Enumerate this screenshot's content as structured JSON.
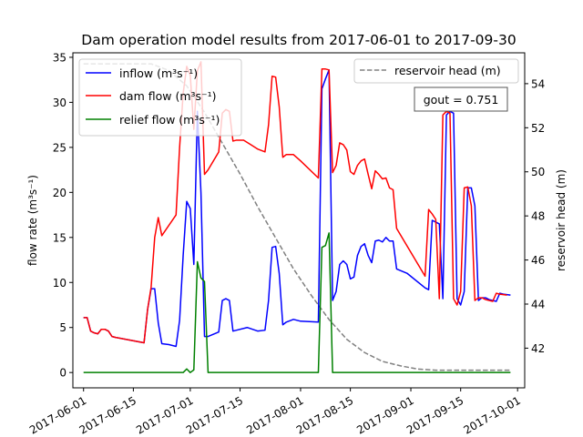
{
  "chart_data": {
    "type": "line",
    "title": "Dam operation model results from 2017-06-01 to 2017-09-30",
    "ylabel": "flow rate (m³s⁻¹)",
    "y2label": "reservoir head (m)",
    "xlim": [
      "2017-05-29",
      "2017-10-03"
    ],
    "ylim": [
      -1.7,
      35.5
    ],
    "y2lim": [
      40.2,
      55.4
    ],
    "x_ticks": [
      "2017-06-01",
      "2017-06-15",
      "2017-07-01",
      "2017-07-15",
      "2017-08-01",
      "2017-08-15",
      "2017-09-01",
      "2017-09-15",
      "2017-10-01"
    ],
    "y_ticks": [
      0,
      5,
      10,
      15,
      20,
      25,
      30,
      35
    ],
    "y2_ticks": [
      42,
      44,
      46,
      48,
      50,
      52,
      54
    ],
    "annotation": "gout = 0.751",
    "legend_left": [
      "inflow (m³s⁻¹)",
      "dam flow (m³s⁻¹)",
      "relief flow (m³s⁻¹)"
    ],
    "legend_right": [
      "reservoir head (m)"
    ],
    "series": [
      {
        "name": "inflow (m³s⁻¹)",
        "axis": "left",
        "color": "#0000ff",
        "points": [
          [
            "2017-06-01",
            6.1
          ],
          [
            "2017-06-02",
            6.1
          ],
          [
            "2017-06-03",
            4.6
          ],
          [
            "2017-06-04",
            4.4
          ],
          [
            "2017-06-05",
            4.3
          ],
          [
            "2017-06-06",
            4.8
          ],
          [
            "2017-06-07",
            4.8
          ],
          [
            "2017-06-08",
            4.6
          ],
          [
            "2017-06-09",
            4.0
          ],
          [
            "2017-06-10",
            3.9
          ],
          [
            "2017-06-18",
            3.3
          ],
          [
            "2017-06-19",
            7.0
          ],
          [
            "2017-06-20",
            9.3
          ],
          [
            "2017-06-21",
            9.3
          ],
          [
            "2017-06-22",
            5.5
          ],
          [
            "2017-06-23",
            3.2
          ],
          [
            "2017-06-25",
            3.1
          ],
          [
            "2017-06-27",
            2.9
          ],
          [
            "2017-06-28",
            5.8
          ],
          [
            "2017-06-29",
            13.0
          ],
          [
            "2017-06-30",
            19.0
          ],
          [
            "2017-07-01",
            18.2
          ],
          [
            "2017-07-02",
            12.0
          ],
          [
            "2017-07-03",
            29.0
          ],
          [
            "2017-07-04",
            20.0
          ],
          [
            "2017-07-05",
            4.0
          ],
          [
            "2017-07-06",
            4.0
          ],
          [
            "2017-07-09",
            4.5
          ],
          [
            "2017-07-10",
            8.0
          ],
          [
            "2017-07-11",
            8.2
          ],
          [
            "2017-07-12",
            8.0
          ],
          [
            "2017-07-13",
            4.6
          ],
          [
            "2017-07-14",
            4.7
          ],
          [
            "2017-07-17",
            5.0
          ],
          [
            "2017-07-20",
            4.6
          ],
          [
            "2017-07-22",
            4.7
          ],
          [
            "2017-07-23",
            8.0
          ],
          [
            "2017-07-24",
            13.9
          ],
          [
            "2017-07-25",
            14.0
          ],
          [
            "2017-07-26",
            11.0
          ],
          [
            "2017-07-27",
            5.3
          ],
          [
            "2017-07-28",
            5.6
          ],
          [
            "2017-07-30",
            5.9
          ],
          [
            "2017-08-01",
            5.7
          ],
          [
            "2017-08-06",
            5.6
          ],
          [
            "2017-08-07",
            31.5
          ],
          [
            "2017-08-08",
            32.6
          ],
          [
            "2017-08-09",
            33.6
          ],
          [
            "2017-08-10",
            8.0
          ],
          [
            "2017-08-11",
            9.0
          ],
          [
            "2017-08-12",
            12.0
          ],
          [
            "2017-08-13",
            12.4
          ],
          [
            "2017-08-14",
            12.0
          ],
          [
            "2017-08-15",
            10.4
          ],
          [
            "2017-08-16",
            10.6
          ],
          [
            "2017-08-17",
            13.0
          ],
          [
            "2017-08-18",
            14.0
          ],
          [
            "2017-08-19",
            14.3
          ],
          [
            "2017-08-20",
            13.0
          ],
          [
            "2017-08-21",
            12.2
          ],
          [
            "2017-08-22",
            14.6
          ],
          [
            "2017-08-23",
            14.7
          ],
          [
            "2017-08-24",
            14.5
          ],
          [
            "2017-08-25",
            15.0
          ],
          [
            "2017-08-26",
            14.6
          ],
          [
            "2017-08-27",
            14.6
          ],
          [
            "2017-08-28",
            11.5
          ],
          [
            "2017-08-31",
            11.0
          ],
          [
            "2017-09-05",
            9.4
          ],
          [
            "2017-09-06",
            9.2
          ],
          [
            "2017-09-07",
            16.9
          ],
          [
            "2017-09-08",
            16.7
          ],
          [
            "2017-09-09",
            16.5
          ],
          [
            "2017-09-10",
            8.2
          ],
          [
            "2017-09-11",
            28.6
          ],
          [
            "2017-09-12",
            29.0
          ],
          [
            "2017-09-13",
            28.8
          ],
          [
            "2017-09-14",
            8.2
          ],
          [
            "2017-09-15",
            7.5
          ],
          [
            "2017-09-16",
            9.0
          ],
          [
            "2017-09-17",
            20.5
          ],
          [
            "2017-09-18",
            20.5
          ],
          [
            "2017-09-19",
            18.5
          ],
          [
            "2017-09-20",
            8.0
          ],
          [
            "2017-09-21",
            8.3
          ],
          [
            "2017-09-22",
            8.3
          ],
          [
            "2017-09-23",
            8.1
          ],
          [
            "2017-09-25",
            7.9
          ],
          [
            "2017-09-26",
            8.8
          ],
          [
            "2017-09-27",
            8.7
          ],
          [
            "2017-09-29",
            8.6
          ]
        ]
      },
      {
        "name": "dam flow (m³s⁻¹)",
        "axis": "left",
        "color": "#ff0000",
        "points": [
          [
            "2017-06-01",
            6.1
          ],
          [
            "2017-06-02",
            6.1
          ],
          [
            "2017-06-03",
            4.6
          ],
          [
            "2017-06-04",
            4.4
          ],
          [
            "2017-06-05",
            4.3
          ],
          [
            "2017-06-06",
            4.8
          ],
          [
            "2017-06-07",
            4.8
          ],
          [
            "2017-06-08",
            4.6
          ],
          [
            "2017-06-09",
            4.0
          ],
          [
            "2017-06-10",
            3.9
          ],
          [
            "2017-06-18",
            3.3
          ],
          [
            "2017-06-19",
            7.0
          ],
          [
            "2017-06-20",
            9.5
          ],
          [
            "2017-06-21",
            15.0
          ],
          [
            "2017-06-22",
            17.2
          ],
          [
            "2017-06-23",
            15.2
          ],
          [
            "2017-06-27",
            17.5
          ],
          [
            "2017-06-28",
            25.0
          ],
          [
            "2017-06-29",
            31.0
          ],
          [
            "2017-06-30",
            34.0
          ],
          [
            "2017-07-01",
            33.0
          ],
          [
            "2017-07-02",
            27.0
          ],
          [
            "2017-07-03",
            33.5
          ],
          [
            "2017-07-04",
            34.5
          ],
          [
            "2017-07-05",
            22.0
          ],
          [
            "2017-07-06",
            22.5
          ],
          [
            "2017-07-09",
            24.5
          ],
          [
            "2017-07-10",
            28.8
          ],
          [
            "2017-07-11",
            29.2
          ],
          [
            "2017-07-12",
            29.0
          ],
          [
            "2017-07-13",
            25.7
          ],
          [
            "2017-07-14",
            25.8
          ],
          [
            "2017-07-16",
            25.8
          ],
          [
            "2017-07-18",
            25.3
          ],
          [
            "2017-07-20",
            24.8
          ],
          [
            "2017-07-22",
            24.5
          ],
          [
            "2017-07-23",
            27.5
          ],
          [
            "2017-07-24",
            32.9
          ],
          [
            "2017-07-25",
            32.8
          ],
          [
            "2017-07-26",
            29.5
          ],
          [
            "2017-07-27",
            23.9
          ],
          [
            "2017-07-28",
            24.2
          ],
          [
            "2017-07-30",
            24.2
          ],
          [
            "2017-08-01",
            23.5
          ],
          [
            "2017-08-06",
            21.6
          ],
          [
            "2017-08-07",
            33.7
          ],
          [
            "2017-08-08",
            33.7
          ],
          [
            "2017-08-09",
            33.6
          ],
          [
            "2017-08-10",
            22.2
          ],
          [
            "2017-08-11",
            23.0
          ],
          [
            "2017-08-12",
            25.5
          ],
          [
            "2017-08-13",
            25.3
          ],
          [
            "2017-08-14",
            24.7
          ],
          [
            "2017-08-15",
            22.3
          ],
          [
            "2017-08-16",
            22.0
          ],
          [
            "2017-08-17",
            23.0
          ],
          [
            "2017-08-18",
            23.5
          ],
          [
            "2017-08-19",
            23.7
          ],
          [
            "2017-08-20",
            22.0
          ],
          [
            "2017-08-21",
            20.4
          ],
          [
            "2017-08-22",
            22.4
          ],
          [
            "2017-08-23",
            22.0
          ],
          [
            "2017-08-24",
            21.5
          ],
          [
            "2017-08-25",
            21.6
          ],
          [
            "2017-08-26",
            20.5
          ],
          [
            "2017-08-27",
            20.3
          ],
          [
            "2017-08-28",
            16.0
          ],
          [
            "2017-09-05",
            10.7
          ],
          [
            "2017-09-06",
            18.1
          ],
          [
            "2017-09-07",
            17.6
          ],
          [
            "2017-09-08",
            17.0
          ],
          [
            "2017-09-09",
            8.2
          ],
          [
            "2017-09-10",
            28.6
          ],
          [
            "2017-09-11",
            29.0
          ],
          [
            "2017-09-12",
            28.8
          ],
          [
            "2017-09-13",
            8.2
          ],
          [
            "2017-09-14",
            7.5
          ],
          [
            "2017-09-15",
            9.0
          ],
          [
            "2017-09-16",
            20.5
          ],
          [
            "2017-09-17",
            20.6
          ],
          [
            "2017-09-18",
            18.5
          ],
          [
            "2017-09-19",
            8.0
          ],
          [
            "2017-09-20",
            8.3
          ],
          [
            "2017-09-21",
            8.3
          ],
          [
            "2017-09-22",
            8.1
          ],
          [
            "2017-09-24",
            7.9
          ],
          [
            "2017-09-25",
            8.8
          ],
          [
            "2017-09-26",
            8.7
          ],
          [
            "2017-09-28",
            8.6
          ]
        ]
      },
      {
        "name": "relief flow (m³s⁻¹)",
        "axis": "left",
        "color": "#008000",
        "points": [
          [
            "2017-06-01",
            0.0
          ],
          [
            "2017-06-29",
            0.0
          ],
          [
            "2017-06-30",
            0.4
          ],
          [
            "2017-07-01",
            0.0
          ],
          [
            "2017-07-02",
            0.3
          ],
          [
            "2017-07-03",
            12.3
          ],
          [
            "2017-07-04",
            10.5
          ],
          [
            "2017-07-05",
            10.1
          ],
          [
            "2017-07-06",
            0.0
          ],
          [
            "2017-08-06",
            0.0
          ],
          [
            "2017-08-07",
            13.9
          ],
          [
            "2017-08-08",
            14.1
          ],
          [
            "2017-08-09",
            15.5
          ],
          [
            "2017-08-10",
            0.0
          ],
          [
            "2017-09-29",
            0.0
          ]
        ]
      },
      {
        "name": "reservoir head (m)",
        "axis": "right",
        "color": "#808080",
        "dashed": true,
        "points": [
          [
            "2017-06-01",
            54.9
          ],
          [
            "2017-06-05",
            54.9
          ],
          [
            "2017-06-10",
            54.9
          ],
          [
            "2017-06-15",
            54.9
          ],
          [
            "2017-06-20",
            54.9
          ],
          [
            "2017-06-25",
            54.6
          ],
          [
            "2017-06-30",
            53.9
          ],
          [
            "2017-07-05",
            52.7
          ],
          [
            "2017-07-10",
            51.3
          ],
          [
            "2017-07-15",
            49.9
          ],
          [
            "2017-07-20",
            48.4
          ],
          [
            "2017-07-25",
            47.0
          ],
          [
            "2017-07-30",
            45.6
          ],
          [
            "2017-08-04",
            44.4
          ],
          [
            "2017-08-09",
            43.3
          ],
          [
            "2017-08-14",
            42.4
          ],
          [
            "2017-08-19",
            41.8
          ],
          [
            "2017-08-24",
            41.4
          ],
          [
            "2017-08-29",
            41.2
          ],
          [
            "2017-09-03",
            41.05
          ],
          [
            "2017-09-08",
            41.0
          ],
          [
            "2017-09-13",
            41.0
          ],
          [
            "2017-09-18",
            41.0
          ],
          [
            "2017-09-23",
            41.0
          ],
          [
            "2017-09-29",
            41.0
          ]
        ]
      }
    ]
  }
}
